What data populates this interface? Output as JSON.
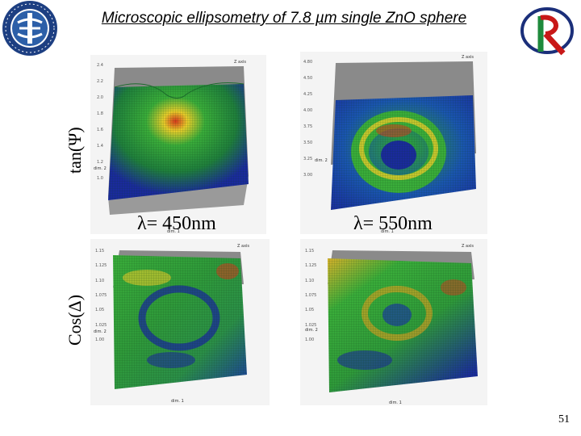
{
  "slide": {
    "title": "Microscopic ellipsometry of 7.8 µm single ZnO sphere",
    "page_number": "51"
  },
  "labels": {
    "y_top": "tan(Ψ)",
    "y_bottom": "Cos(Δ)",
    "wavelength_left": "λ= 450nm",
    "wavelength_right": "λ= 550nm"
  },
  "plots": {
    "top_left": {
      "z_axis": "Z axis",
      "dim1": "dim. 1",
      "dim2": "dim. 2",
      "z_ticks": [
        "1.0",
        "1.2",
        "1.4",
        "1.6",
        "1.8",
        "2.0",
        "2.2",
        "2.4"
      ]
    },
    "top_right": {
      "z_axis": "Z axis",
      "dim1": "dim. 1",
      "dim2": "dim. 2",
      "z_ticks": [
        "3.00",
        "3.25",
        "3.50",
        "3.75",
        "4.00",
        "4.25",
        "4.50",
        "4.80"
      ]
    },
    "bottom_left": {
      "z_axis": "Z axis",
      "dim1": "dim. 1",
      "dim2": "dim. 2",
      "z_ticks": [
        "1.00",
        "1.025",
        "1.05",
        "1.075",
        "1.10",
        "1.125",
        "1.15"
      ]
    },
    "bottom_right": {
      "z_axis": "Z axis",
      "dim1": "dim. 1",
      "dim2": "dim. 2",
      "z_ticks": [
        "1.00",
        "1.025",
        "1.05",
        "1.075",
        "1.10",
        "1.125",
        "1.15"
      ]
    }
  },
  "colors": {
    "surface_low": "#1a2a9c",
    "surface_mid": "#2fa82f",
    "surface_high": "#e8cc2a",
    "surface_peak": "#d8381c",
    "backdrop": "#8c8c8c"
  }
}
